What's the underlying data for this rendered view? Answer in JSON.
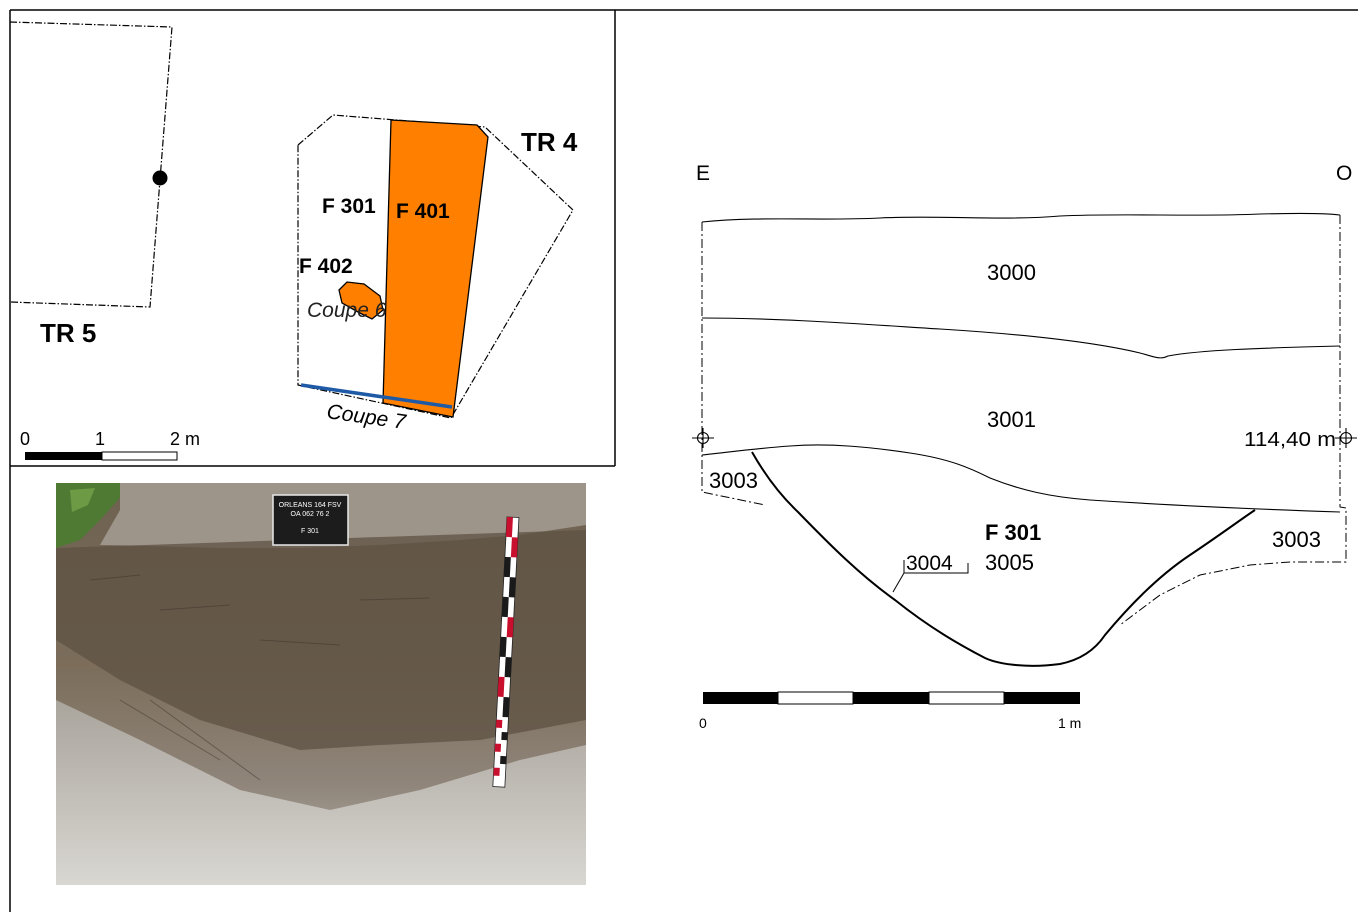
{
  "plan": {
    "tr5_label": "TR 5",
    "tr4_label": "TR 4",
    "f301_label": "F 301",
    "f401_label": "F 401",
    "f402_label": "F 402",
    "coupe6_label": "Coupe 6",
    "coupe7_label": "Coupe 7",
    "scale": {
      "t0": "0",
      "t1": "1",
      "t2": "2 m"
    },
    "colors": {
      "f401_fill": "#ff8000",
      "coupe7_line": "#1f5aa6"
    }
  },
  "photo": {
    "board_line1": "ORLEANS 164 FSV",
    "board_line2": "OA 062 76 2",
    "board_line3": "F 301"
  },
  "section": {
    "left_label": "E",
    "right_label": "O",
    "altitude_label": "114,40 m",
    "f301_label": "F 301",
    "layers": {
      "l3000": "3000",
      "l3001": "3001",
      "l3003_left": "3003",
      "l3003_right": "3003",
      "l3004": "3004",
      "l3005": "3005"
    },
    "scale": {
      "t0": "0",
      "t1": "1 m"
    }
  }
}
